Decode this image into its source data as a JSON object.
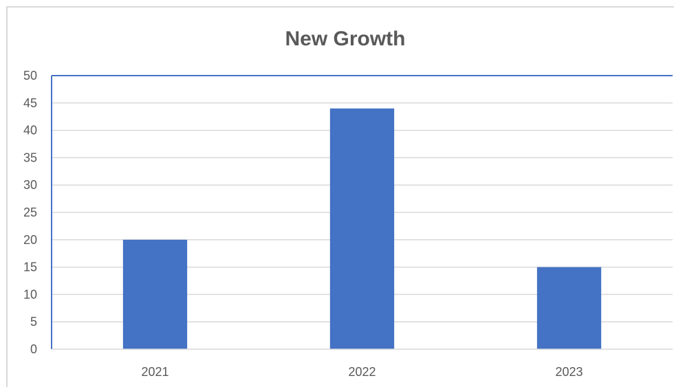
{
  "chart_data": {
    "type": "bar",
    "title": "New Growth",
    "xlabel": "",
    "ylabel": "",
    "categories": [
      "2021",
      "2022",
      "2023"
    ],
    "values": [
      20,
      44,
      15
    ],
    "ylim": [
      0,
      50
    ],
    "ytick_step": 5,
    "grid": true,
    "legend": "none",
    "colors": {
      "bar": "#4472c4",
      "plot_border": "#4472c4",
      "grid": "#d9d9d9",
      "text": "#595959"
    }
  }
}
